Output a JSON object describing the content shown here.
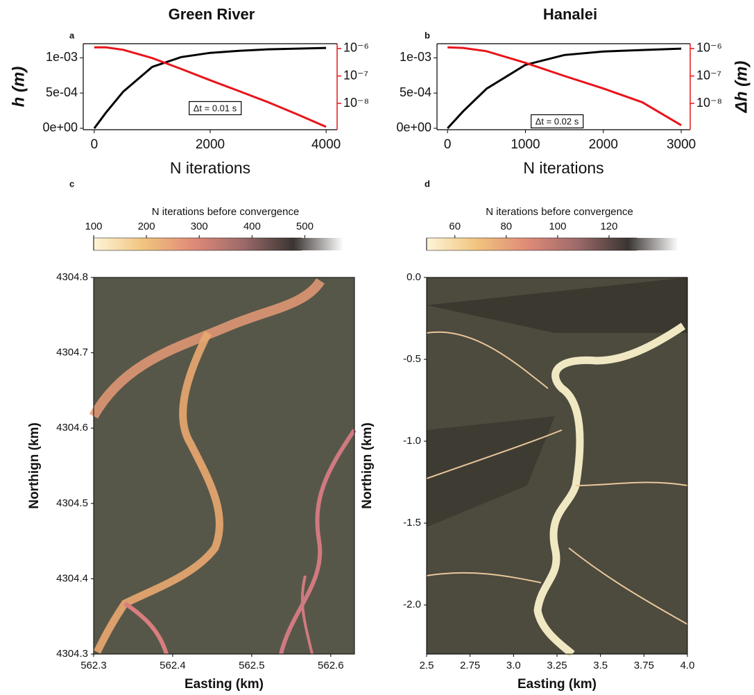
{
  "chart_data": [
    {
      "type": "line",
      "title": "Green River",
      "panel": "a",
      "xlabel": "N iterations",
      "ylabel": "h (m)",
      "annotation": "Δt = 0.01 s",
      "x": [
        0,
        200,
        500,
        1000,
        1500,
        2000,
        2500,
        3000,
        3500,
        4000
      ],
      "series": [
        {
          "name": "h",
          "color": "#000000",
          "values": [
            0,
            0.00022,
            0.00052,
            0.00087,
            0.00101,
            0.00107,
            0.0011,
            0.00112,
            0.00113,
            0.00114
          ]
        },
        {
          "name": "Δh",
          "color": "#e8141a",
          "axis": "y2",
          "values": [
            1.1e-06,
            1.1e-06,
            9e-07,
            4.5e-07,
            1.8e-07,
            7e-08,
            2.8e-08,
            1.1e-08,
            4e-09,
            1.4e-09
          ]
        }
      ],
      "xlim": [
        -190,
        4190
      ],
      "xticks": [
        0,
        2000,
        4000
      ],
      "ylim": [
        -2e-05,
        0.0012
      ],
      "yticks": [
        {
          "value": 0,
          "label": "0e+00"
        },
        {
          "value": 0.0005,
          "label": "5e-04"
        },
        {
          "value": 0.001,
          "label": "1e-03"
        }
      ],
      "y2lim": [
        1.1e-09,
        1.5e-06
      ],
      "y2log": true,
      "y2ticks": [
        {
          "value": 1e-08,
          "label": "10⁻⁸"
        },
        {
          "value": 1e-07,
          "label": "10⁻⁷"
        },
        {
          "value": 1e-06,
          "label": "10⁻⁶"
        }
      ],
      "y2color": "#e8141a"
    },
    {
      "type": "line",
      "title": "Hanalei",
      "panel": "b",
      "xlabel": "N iterations",
      "y2label": "Δh (m)",
      "annotation": "Δt = 0.02 s",
      "x": [
        0,
        200,
        500,
        1000,
        1500,
        2000,
        2500,
        3000
      ],
      "series": [
        {
          "name": "h",
          "color": "#000000",
          "values": [
            0,
            0.00024,
            0.00056,
            0.0009,
            0.00104,
            0.00109,
            0.00111,
            0.00113
          ]
        },
        {
          "name": "Δh",
          "color": "#e8141a",
          "axis": "y2",
          "values": [
            1.1e-06,
            1.05e-06,
            8e-07,
            3e-07,
            1e-07,
            3.5e-08,
            1.1e-08,
            1.6e-09
          ]
        }
      ],
      "xlim": [
        -135,
        3115
      ],
      "xticks": [
        0,
        1000,
        2000,
        3000
      ],
      "ylim": [
        -2e-05,
        0.0012
      ],
      "yticks": [
        {
          "value": 0,
          "label": "0e+00"
        },
        {
          "value": 0.0005,
          "label": "5e-04"
        },
        {
          "value": 0.001,
          "label": "1e-03"
        }
      ],
      "y2lim": [
        1.1e-09,
        1.5e-06
      ],
      "y2log": true,
      "y2ticks": [
        {
          "value": 1e-08,
          "label": "10⁻⁸"
        },
        {
          "value": 1e-07,
          "label": "10⁻⁷"
        },
        {
          "value": 1e-06,
          "label": "10⁻⁶"
        }
      ],
      "y2color": "#e8141a"
    },
    {
      "type": "map",
      "panel": "c",
      "xlabel": "Easting (km)",
      "ylabel": "Northign (km)",
      "xlim": [
        562.3,
        562.63
      ],
      "xticks": [
        562.3,
        562.4,
        562.5,
        562.6
      ],
      "ylim": [
        4304.3,
        4304.8
      ],
      "yticks": [
        4304.3,
        4304.4,
        4304.5,
        4304.6,
        4304.7,
        4304.8
      ],
      "colorbar_label": "N iterations before convergence",
      "colorbar_lim": [
        100,
        573
      ],
      "colorbar_ticks": [
        100,
        200,
        300,
        400,
        500
      ],
      "colormap": [
        "#fdf5d8",
        "#f0c47e",
        "#e08a78",
        "#9c6a6a",
        "#3a3532",
        "#ffffff"
      ]
    },
    {
      "type": "map",
      "panel": "d",
      "xlabel": "Easting (km)",
      "ylabel": "Northign (km)",
      "xlim": [
        2.5,
        4.0
      ],
      "xticks": [
        2.5,
        2.75,
        {
          "value": 3,
          "label": "3.0"
        },
        3.25,
        3.5,
        3.75,
        {
          "value": 4,
          "label": "4.0"
        }
      ],
      "ylim": [
        -2.3,
        0
      ],
      "yticks": [
        {
          "value": -2,
          "label": "-2.0"
        },
        -1.5,
        {
          "value": -1,
          "label": "-1.0"
        },
        -0.5,
        {
          "value": 0,
          "label": "0.0"
        }
      ],
      "colorbar_label": "N iterations before convergence",
      "colorbar_lim": [
        49,
        147
      ],
      "colorbar_ticks": [
        60,
        80,
        100,
        120
      ],
      "colormap": [
        "#fdf5d8",
        "#f0c47e",
        "#e08a78",
        "#9c6a6a",
        "#3a3532",
        "#ffffff"
      ]
    }
  ]
}
